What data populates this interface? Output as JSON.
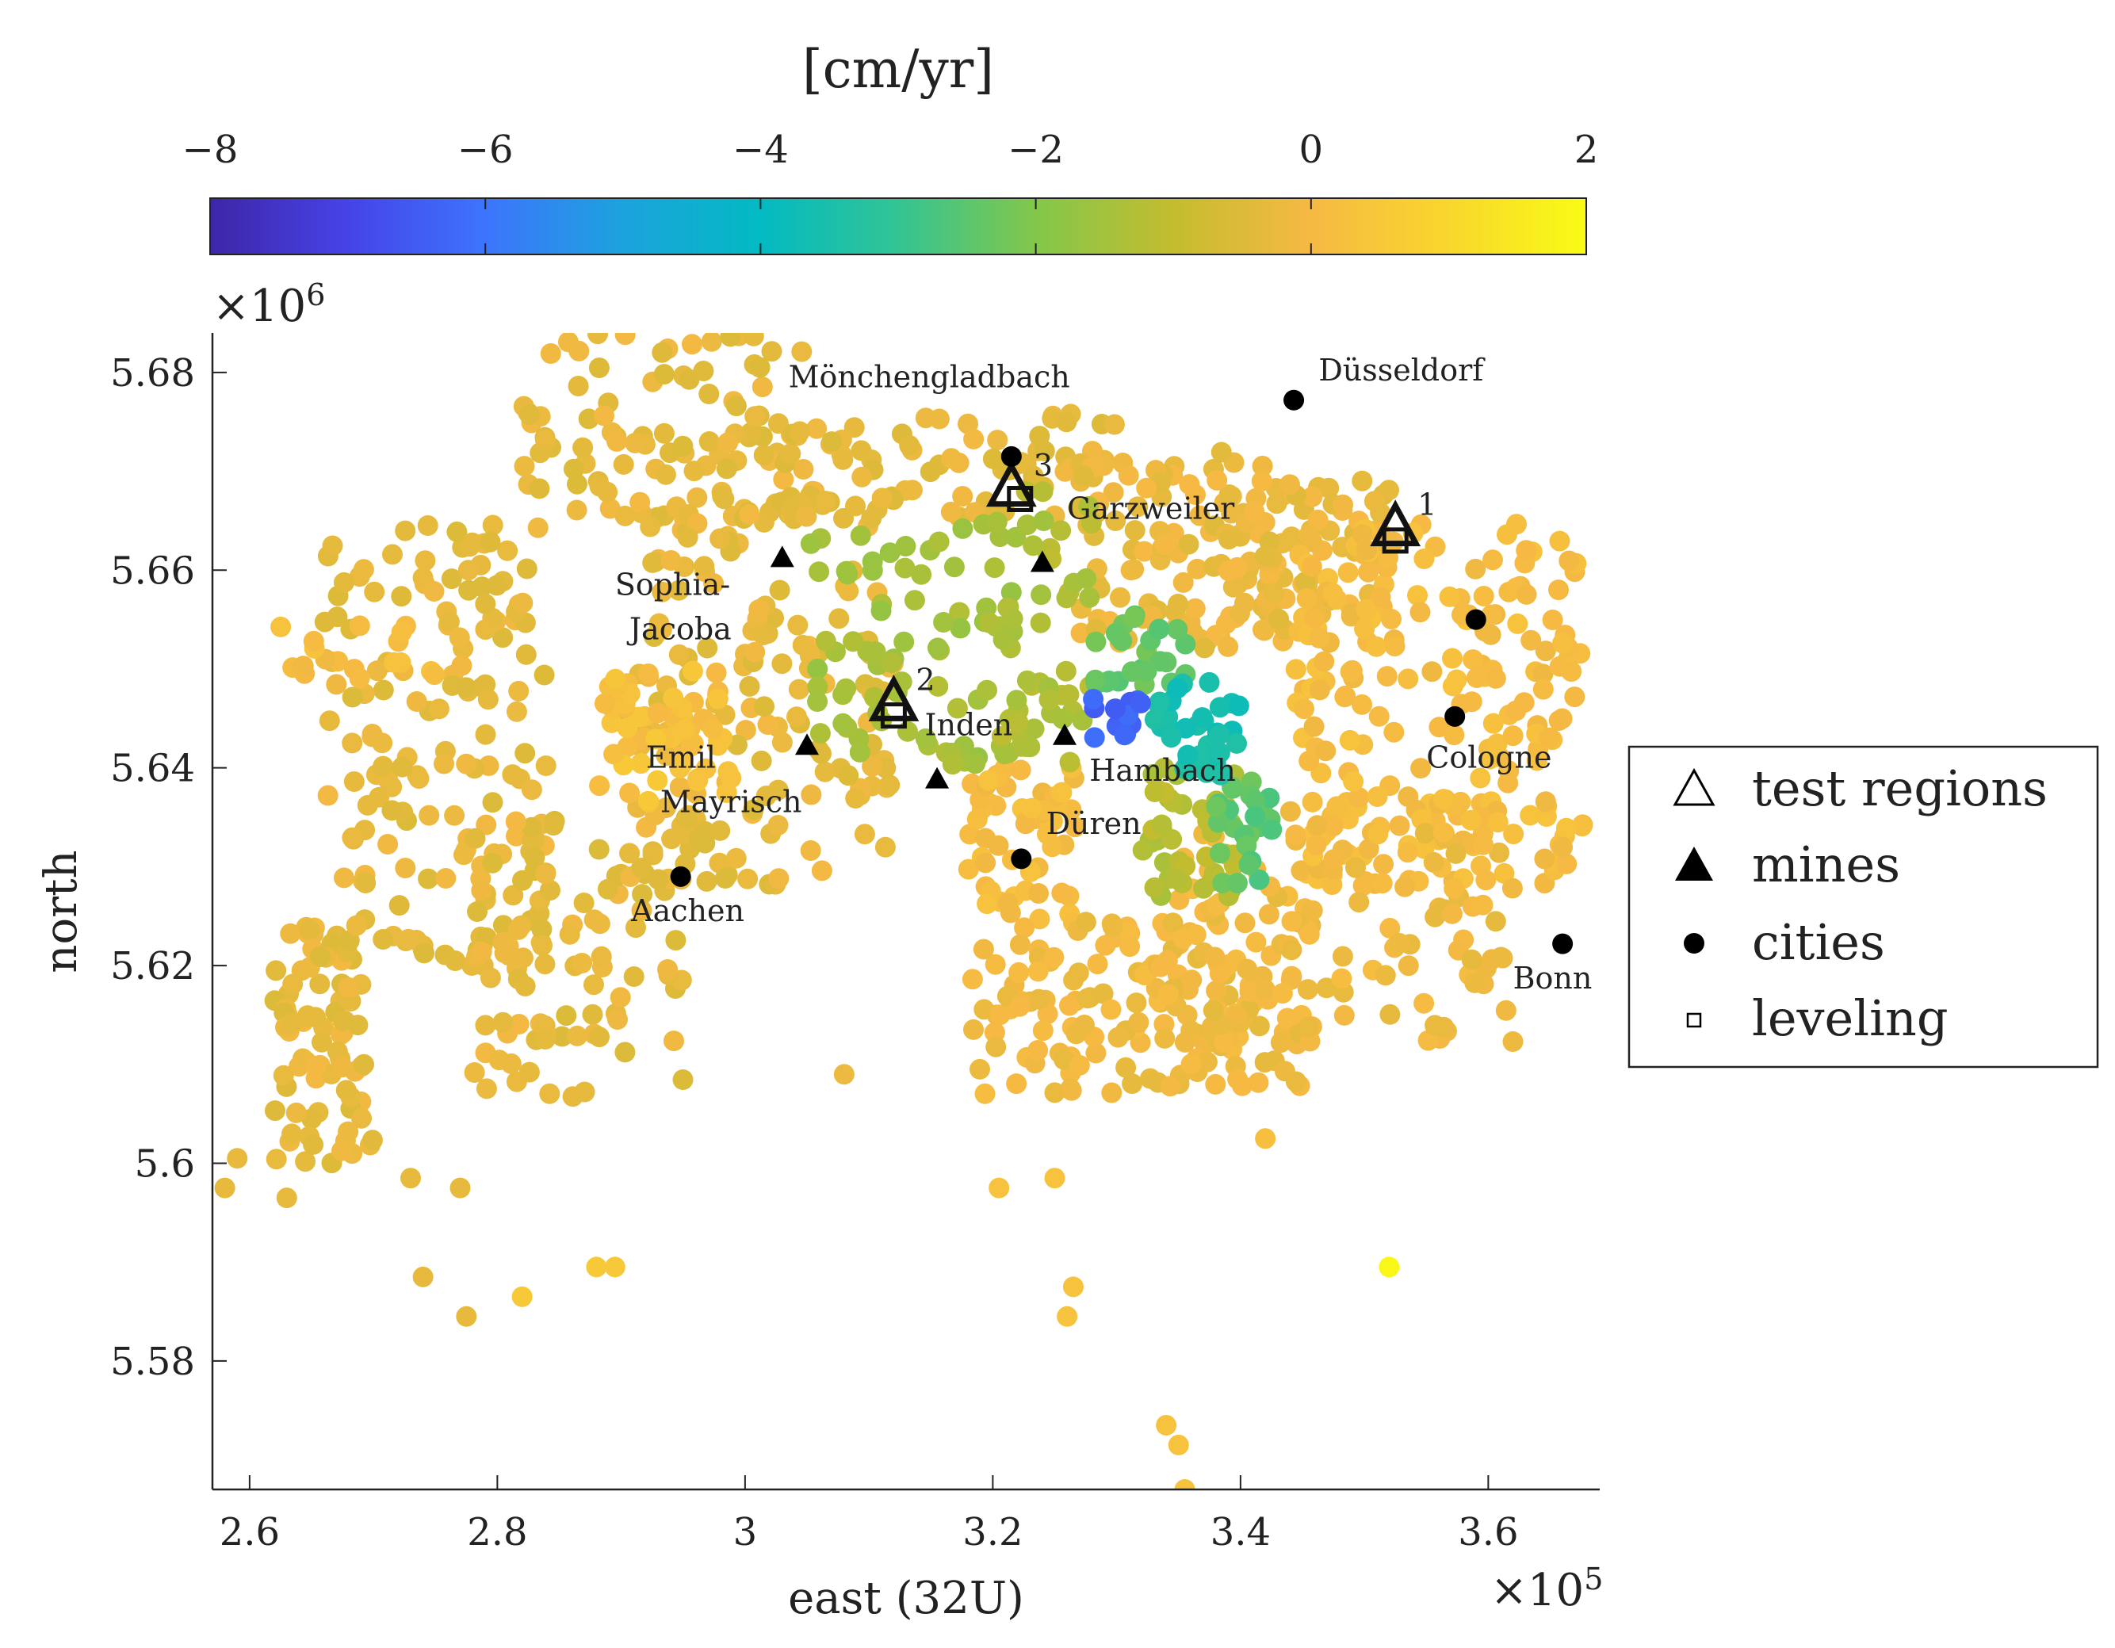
{
  "chart_data": {
    "type": "scatter",
    "title": "",
    "xlabel": "east (32U)",
    "ylabel": "north",
    "x_exponent_label": "×10",
    "x_exponent_power": "5",
    "y_exponent_label": "×10",
    "y_exponent_power": "6",
    "xlim": [
      2.57,
      3.69
    ],
    "ylim": [
      5.567,
      5.684
    ],
    "x_ticks": [
      2.6,
      2.8,
      3.0,
      3.2,
      3.4,
      3.6
    ],
    "x_tick_labels": [
      "2.6",
      "2.8",
      "3",
      "3.2",
      "3.4",
      "3.6"
    ],
    "y_ticks": [
      5.58,
      5.6,
      5.62,
      5.64,
      5.66,
      5.68
    ],
    "y_tick_labels": [
      "5.58",
      "5.6",
      "5.62",
      "5.64",
      "5.66",
      "5.68"
    ],
    "colorbar": {
      "title": "[cm/yr]",
      "range": [
        -8,
        2
      ],
      "ticks": [
        -8,
        -6,
        -4,
        -2,
        0,
        2
      ],
      "tick_labels": [
        "−8",
        "−6",
        "−4",
        "−2",
        "0",
        "2"
      ],
      "colormap": [
        "#3e26a8",
        "#4643e7",
        "#3d74fd",
        "#1ca3dd",
        "#02bac2",
        "#33c493",
        "#83c74a",
        "#c4bc2f",
        "#f6b944",
        "#f8d72c",
        "#f9fb15"
      ]
    },
    "clusters": [
      {
        "x": [
          2.62,
          2.7
        ],
        "y": [
          5.6,
          5.625
        ],
        "value": -0.3,
        "n": 85
      },
      {
        "x": [
          2.66,
          2.84
        ],
        "y": [
          5.62,
          5.665
        ],
        "value": -0.3,
        "n": 160
      },
      {
        "x": [
          2.82,
          3.05
        ],
        "y": [
          5.665,
          5.684
        ],
        "value": -0.3,
        "n": 90
      },
      {
        "x": [
          2.78,
          2.95
        ],
        "y": [
          5.606,
          5.635
        ],
        "value": -0.3,
        "n": 90
      },
      {
        "x": [
          2.9,
          3.12
        ],
        "y": [
          5.628,
          5.668
        ],
        "value": -0.3,
        "n": 170
      },
      {
        "x": [
          2.98,
          3.3
        ],
        "y": [
          5.664,
          5.676
        ],
        "value": -0.3,
        "n": 90
      },
      {
        "x": [
          3.27,
          3.44
        ],
        "y": [
          5.652,
          5.672
        ],
        "value": -0.2,
        "n": 100
      },
      {
        "x": [
          3.38,
          3.52
        ],
        "y": [
          5.655,
          5.67
        ],
        "value": -0.2,
        "n": 80
      },
      {
        "x": [
          3.44,
          3.68
        ],
        "y": [
          5.628,
          5.665
        ],
        "value": 0.1,
        "n": 230
      },
      {
        "x": [
          3.18,
          3.27
        ],
        "y": [
          5.624,
          5.64
        ],
        "value": 0.1,
        "n": 60
      },
      {
        "x": [
          3.18,
          3.46
        ],
        "y": [
          5.607,
          5.625
        ],
        "value": -0.1,
        "n": 160
      },
      {
        "x": [
          3.34,
          3.62
        ],
        "y": [
          5.612,
          5.634
        ],
        "value": -0.1,
        "n": 120
      },
      {
        "x": [
          2.88,
          2.98
        ],
        "y": [
          5.642,
          5.65
        ],
        "value": 0.2,
        "n": 40
      },
      {
        "x": [
          2.88,
          3.0
        ],
        "y": [
          5.636,
          5.644
        ],
        "value": 0.3,
        "n": 25
      },
      {
        "x": [
          2.62,
          2.75
        ],
        "y": [
          5.648,
          5.655
        ],
        "value": 0.1,
        "n": 20
      },
      {
        "x": [
          3.05,
          3.25
        ],
        "y": [
          5.64,
          5.665
        ],
        "value": -1.5,
        "n": 80
      },
      {
        "x": [
          3.2,
          3.28
        ],
        "y": [
          5.64,
          5.668
        ],
        "value": -1.3,
        "n": 45
      },
      {
        "x": [
          3.32,
          3.4
        ],
        "y": [
          5.627,
          5.64
        ],
        "value": -1.2,
        "n": 45
      },
      {
        "x": [
          3.28,
          3.36
        ],
        "y": [
          5.648,
          5.656
        ],
        "value": -2.4,
        "n": 25
      },
      {
        "x": [
          3.38,
          3.43
        ],
        "y": [
          5.628,
          5.64
        ],
        "value": -2.5,
        "n": 25
      },
      {
        "x": [
          3.33,
          3.4
        ],
        "y": [
          5.639,
          5.649
        ],
        "value": -3.6,
        "n": 35
      },
      {
        "x": [
          3.28,
          3.32
        ],
        "y": [
          5.643,
          5.647
        ],
        "value": -6.3,
        "n": 14
      }
    ],
    "scattered_points": [
      {
        "x": 2.58,
        "y": 5.5975,
        "value": -0.3
      },
      {
        "x": 2.59,
        "y": 5.6005,
        "value": -0.3
      },
      {
        "x": 2.63,
        "y": 5.5965,
        "value": -0.3
      },
      {
        "x": 2.73,
        "y": 5.5985,
        "value": -0.3
      },
      {
        "x": 2.74,
        "y": 5.5885,
        "value": -0.3
      },
      {
        "x": 2.77,
        "y": 5.5975,
        "value": -0.3
      },
      {
        "x": 2.775,
        "y": 5.5845,
        "value": -0.3
      },
      {
        "x": 2.82,
        "y": 5.5865,
        "value": 0.5
      },
      {
        "x": 2.88,
        "y": 5.5895,
        "value": 0.5
      },
      {
        "x": 2.895,
        "y": 5.5895,
        "value": 0.5
      },
      {
        "x": 3.08,
        "y": 5.609,
        "value": -0.2
      },
      {
        "x": 3.205,
        "y": 5.5975,
        "value": 0.3
      },
      {
        "x": 3.25,
        "y": 5.5985,
        "value": 0.3
      },
      {
        "x": 3.26,
        "y": 5.5845,
        "value": 0.3
      },
      {
        "x": 3.265,
        "y": 5.5875,
        "value": 0.3
      },
      {
        "x": 3.34,
        "y": 5.5735,
        "value": 0.3
      },
      {
        "x": 3.35,
        "y": 5.5715,
        "value": 0.3
      },
      {
        "x": 3.355,
        "y": 5.567,
        "value": 0.3
      },
      {
        "x": 3.42,
        "y": 5.6025,
        "value": 0.2
      },
      {
        "x": 3.52,
        "y": 5.5895,
        "value": 1.9
      }
    ],
    "cities": [
      {
        "name": "Mönchengladbach",
        "x": 3.215,
        "y": 5.6715,
        "label_dx": -0.18,
        "label_dy": 0.007
      },
      {
        "name": "Düsseldorf",
        "x": 3.443,
        "y": 5.6772,
        "label_dx": 0.02,
        "label_dy": 0.002
      },
      {
        "name": "Aachen",
        "x": 2.948,
        "y": 5.629,
        "label_dx": -0.04,
        "label_dy": -0.0045
      },
      {
        "name": "Düren",
        "x": 3.223,
        "y": 5.6308,
        "label_dx": 0.02,
        "label_dy": 0.0025
      },
      {
        "name": "Cologne",
        "x": 3.59,
        "y": 5.655,
        "label_dx": -0.04,
        "label_dy": -0.015
      },
      {
        "name": "",
        "x": 3.573,
        "y": 5.6452,
        "label_dx": 0,
        "label_dy": 0
      },
      {
        "name": "Bonn",
        "x": 3.66,
        "y": 5.6222,
        "label_dx": -0.04,
        "label_dy": -0.0045
      }
    ],
    "mines": [
      {
        "name": "Garzweiler",
        "x": 3.24,
        "y": 5.6607,
        "label_dx": 0.02,
        "label_dy": 0.0045
      },
      {
        "name": "Hambach",
        "x": 3.258,
        "y": 5.6432,
        "label_dx": 0.02,
        "label_dy": -0.0045
      },
      {
        "name": "Inden",
        "x": 3.155,
        "y": 5.6388,
        "label_dx": -0.01,
        "label_dy": 0.0045
      },
      {
        "name": "",
        "x": 3.05,
        "y": 5.6422,
        "label_dx": 0,
        "label_dy": 0
      },
      {
        "name": "",
        "x": 3.03,
        "y": 5.6612,
        "label_dx": 0,
        "label_dy": 0
      }
    ],
    "mine_labels": [
      {
        "lines": [
          "Sophia-",
          "Jacoba"
        ],
        "x": 2.895,
        "y": 5.6575
      },
      {
        "lines": [
          "Emil",
          "Mayrisch"
        ],
        "x": 2.92,
        "y": 5.64
      }
    ],
    "test_regions": [
      {
        "label": "1",
        "x": 3.525,
        "y": 5.6635
      },
      {
        "label": "2",
        "x": 3.12,
        "y": 5.6458
      },
      {
        "label": "3",
        "x": 3.215,
        "y": 5.6675
      }
    ],
    "leveling": [
      {
        "x": 3.525,
        "y": 5.663
      },
      {
        "x": 3.12,
        "y": 5.6453
      },
      {
        "x": 3.222,
        "y": 5.6672
      }
    ],
    "legend": {
      "position": "right",
      "entries": [
        {
          "marker": "open-triangle",
          "label": "test regions"
        },
        {
          "marker": "filled-triangle",
          "label": "mines"
        },
        {
          "marker": "filled-circle",
          "label": "cities"
        },
        {
          "marker": "open-square",
          "label": "leveling"
        }
      ]
    }
  }
}
